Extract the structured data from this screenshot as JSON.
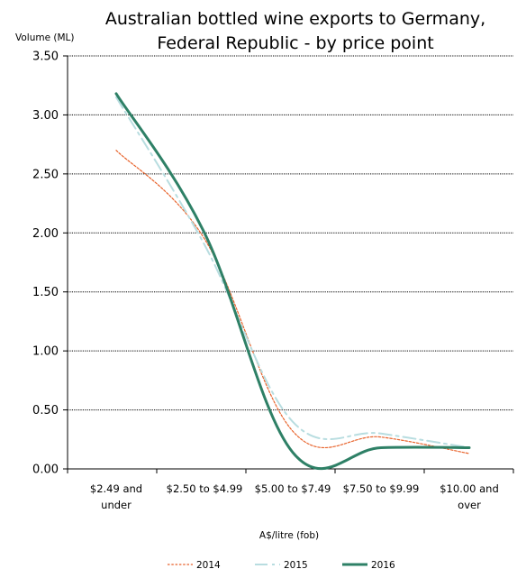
{
  "chart_data": {
    "type": "line",
    "title_lines": [
      "Australian bottled wine exports to Germany,",
      "Federal Republic - by price point"
    ],
    "ylabel": "Volume (ML)",
    "xlabel": "A$/litre (fob)",
    "categories": [
      [
        "$2.49 and",
        "under"
      ],
      [
        "$2.50 to $4.99"
      ],
      [
        "$5.00 to $7.49"
      ],
      [
        "$7.50 to $9.99"
      ],
      [
        "$10.00 and",
        "over"
      ]
    ],
    "y_ticks": [
      "3.50",
      "3.00",
      "2.50",
      "2.00",
      "1.50",
      "1.00",
      "0.50",
      "0.00"
    ],
    "ylim": [
      0,
      3.5
    ],
    "grid": true,
    "legend_position": "bottom",
    "series": [
      {
        "name": "2014",
        "values": [
          2.7,
          1.95,
          0.32,
          0.27,
          0.13
        ],
        "color": "#E8622A",
        "style": "dotted"
      },
      {
        "name": "2015",
        "values": [
          3.15,
          1.9,
          0.4,
          0.3,
          0.18
        ],
        "color": "#B8DDE0",
        "style": "dashdot"
      },
      {
        "name": "2016",
        "values": [
          3.18,
          2.0,
          0.14,
          0.18,
          0.18
        ],
        "color": "#2E8066",
        "style": "solid"
      }
    ]
  }
}
